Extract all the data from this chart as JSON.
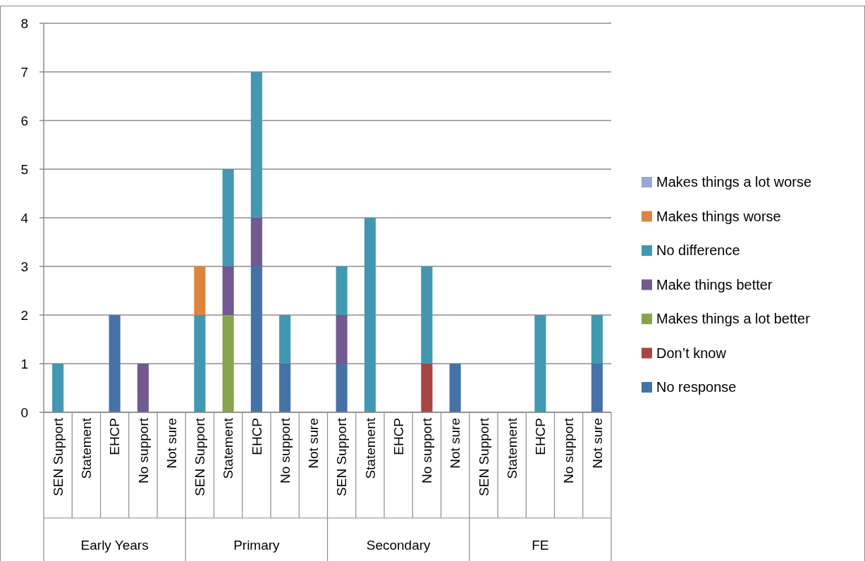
{
  "chart_data": {
    "type": "bar",
    "stacked": true,
    "categories": [
      "SEN Support",
      "Statement",
      "EHCP",
      "No support",
      "Not sure",
      "SEN Support",
      "Statement",
      "EHCP",
      "No support",
      "Not sure",
      "SEN Support",
      "Statement",
      "EHCP",
      "No support",
      "Not sure",
      "SEN Support",
      "Statement",
      "EHCP",
      "No support",
      "Not sure"
    ],
    "annotations": [
      "Early Years",
      "Primary",
      "Secondary",
      "FE"
    ],
    "series": [
      {
        "name": "No response",
        "color": "#4672a8",
        "values": [
          null,
          null,
          2,
          null,
          null,
          null,
          null,
          3,
          1,
          null,
          1,
          null,
          null,
          null,
          1,
          null,
          null,
          null,
          null,
          1
        ]
      },
      {
        "name": "Don’t know",
        "color": "#a84545",
        "values": [
          null,
          null,
          null,
          null,
          null,
          null,
          null,
          null,
          null,
          null,
          null,
          null,
          null,
          1,
          null,
          null,
          null,
          null,
          null,
          null
        ]
      },
      {
        "name": "Makes things a lot better",
        "color": "#88a54c",
        "values": [
          null,
          null,
          null,
          null,
          null,
          null,
          2,
          null,
          null,
          null,
          null,
          null,
          null,
          null,
          null,
          null,
          null,
          null,
          null,
          null
        ]
      },
      {
        "name": "Make things better",
        "color": "#72598f",
        "values": [
          null,
          null,
          null,
          1,
          null,
          null,
          1,
          1,
          null,
          null,
          1,
          null,
          null,
          null,
          null,
          null,
          null,
          null,
          null,
          null
        ]
      },
      {
        "name": "No difference",
        "color": "#4298b0",
        "values": [
          1,
          null,
          null,
          null,
          null,
          2,
          2,
          3,
          1,
          null,
          1,
          4,
          null,
          2,
          null,
          null,
          null,
          2,
          null,
          1
        ]
      },
      {
        "name": "Makes things worse",
        "color": "#dc853c",
        "values": [
          null,
          null,
          null,
          null,
          null,
          1,
          null,
          null,
          null,
          null,
          null,
          null,
          null,
          null,
          null,
          null,
          null,
          null,
          null,
          null
        ]
      },
      {
        "name": "Makes things a lot worse",
        "color": "#94a9d4",
        "values": [
          null,
          null,
          null,
          null,
          null,
          null,
          null,
          null,
          null,
          null,
          null,
          null,
          null,
          null,
          null,
          null,
          null,
          null,
          null,
          null
        ]
      }
    ],
    "ylim": [
      0,
      8
    ],
    "yticks": [
      0,
      1,
      2,
      3,
      4,
      5,
      6,
      7,
      8
    ],
    "grid": "y",
    "legend": "right"
  }
}
